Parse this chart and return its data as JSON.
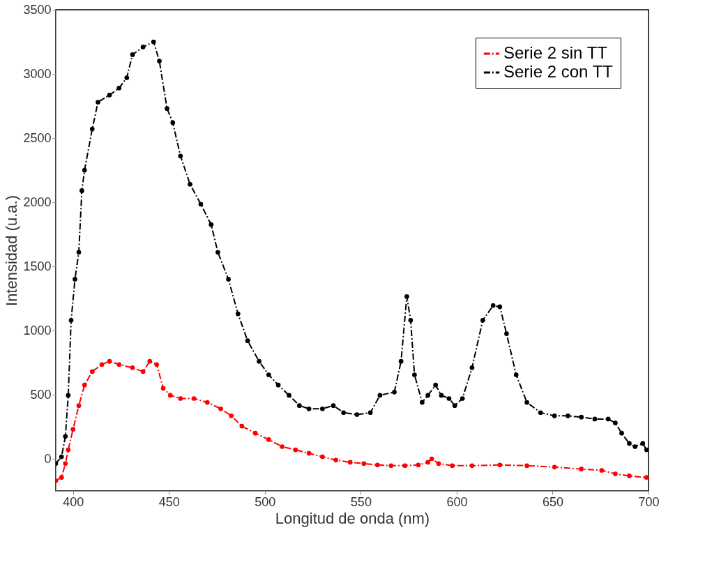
{
  "chart_data": {
    "type": "line",
    "xlabel": "Longitud de onda (nm)",
    "ylabel": "Intensidad (u.a.)",
    "xlim": [
      391,
      700
    ],
    "xticks": [
      400,
      450,
      500,
      550,
      600,
      650,
      700
    ],
    "ylim": [
      -250,
      3500
    ],
    "yticks": [
      0,
      500,
      1000,
      1500,
      2000,
      2500,
      3000,
      3500
    ],
    "grid": false,
    "legend": "top right",
    "marker": "circle",
    "line_style": "dashdot",
    "series": [
      {
        "name": "Serie 2 sin TT",
        "color": "#ff0000",
        "x": [
          391,
          394,
          396,
          397.5,
          400,
          403,
          406,
          410,
          415,
          419,
          424,
          431,
          436.5,
          440,
          443.6,
          447,
          450.7,
          456,
          463,
          470,
          477,
          482.5,
          488,
          495,
          502,
          509,
          516,
          523,
          530,
          537,
          544.5,
          551.6,
          558.7,
          565.8,
          573,
          580,
          585,
          587,
          590.6,
          597.7,
          608,
          622.5,
          636.6,
          651,
          665,
          675.6,
          682.7,
          690,
          699
        ],
        "values": [
          -170,
          -145,
          -37,
          70,
          230,
          415,
          575,
          680,
          735,
          760,
          735,
          710,
          680,
          760,
          735,
          550,
          495,
          470,
          470,
          440,
          390,
          335,
          255,
          200,
          150,
          95,
          70,
          43,
          16,
          -10,
          -27,
          -37,
          -48,
          -53,
          -53,
          -48,
          -27,
          0,
          -37,
          -53,
          -53,
          -48,
          -53,
          -64,
          -80,
          -90,
          -117,
          -133,
          -145
        ]
      },
      {
        "name": "Serie 2 con TT",
        "color": "#000000",
        "x": [
          391,
          394,
          396,
          397.5,
          399,
          401,
          403,
          404.6,
          406,
          410,
          413,
          419,
          424,
          428,
          431,
          436.5,
          442,
          445,
          449,
          452,
          456,
          461,
          466.6,
          472,
          475.5,
          481,
          486,
          491,
          497,
          502,
          507,
          512.6,
          518,
          523,
          530,
          535.7,
          541,
          548,
          555,
          560,
          567.5,
          571,
          574,
          576,
          578,
          582,
          585,
          589,
          592,
          596,
          599,
          603,
          608,
          613.6,
          619,
          622.5,
          626,
          631,
          636.6,
          643.7,
          651,
          658,
          665,
          672,
          679,
          682.7,
          686,
          690,
          693,
          697,
          699
        ],
        "values": [
          -37,
          16,
          175,
          495,
          1080,
          1400,
          1610,
          2090,
          2250,
          2570,
          2780,
          2835,
          2890,
          2970,
          3150,
          3210,
          3250,
          3100,
          2730,
          2620,
          2360,
          2140,
          1985,
          1825,
          1610,
          1400,
          1130,
          920,
          760,
          655,
          575,
          495,
          415,
          390,
          390,
          415,
          360,
          345,
          360,
          495,
          520,
          760,
          1265,
          1080,
          655,
          440,
          495,
          575,
          495,
          470,
          415,
          470,
          710,
          1080,
          1195,
          1185,
          975,
          655,
          440,
          360,
          335,
          335,
          325,
          310,
          310,
          280,
          200,
          120,
          95,
          120,
          70
        ]
      }
    ]
  }
}
